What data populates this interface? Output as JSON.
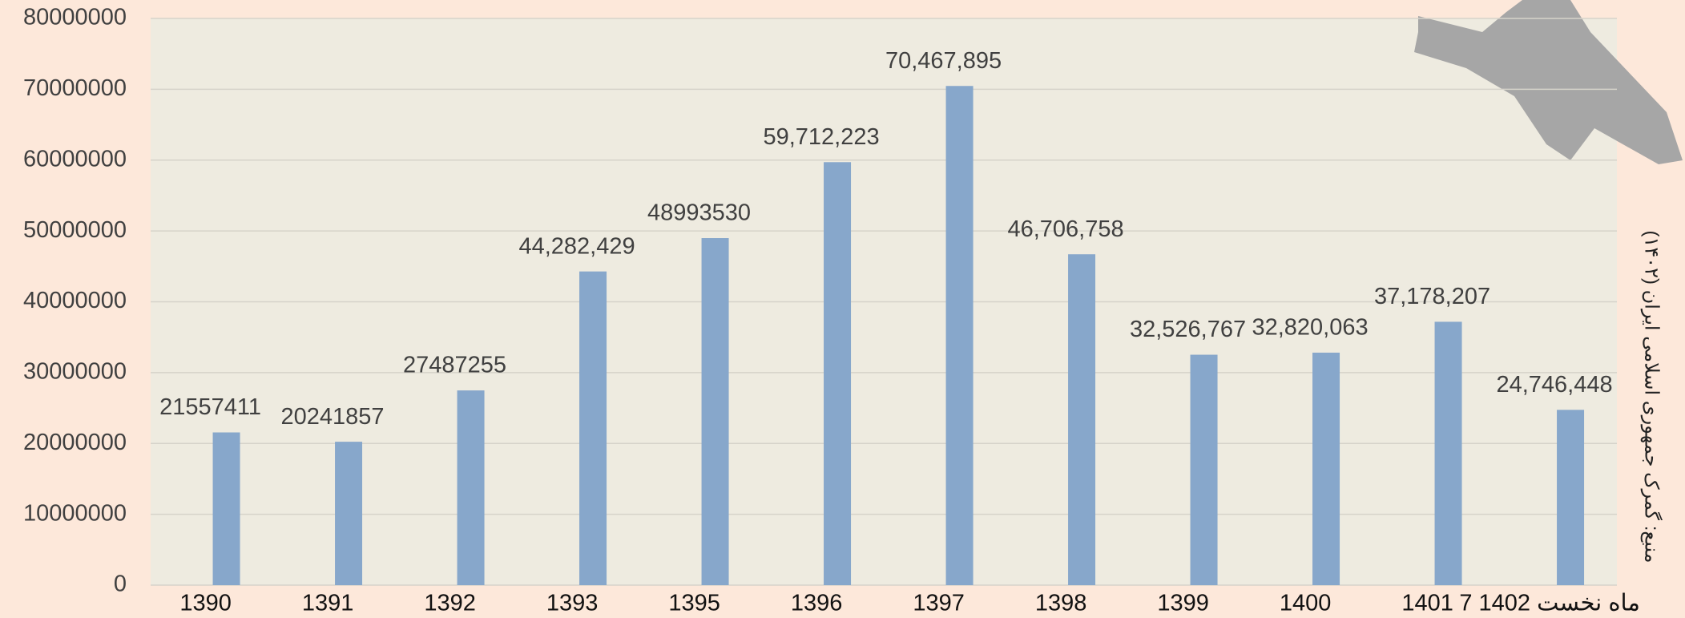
{
  "chart_data": {
    "type": "bar",
    "source": "منبع: گمرک جمهوری اسلامی ایران (۱۴۰۲)",
    "categories": [
      "1390",
      "1391",
      "1392",
      "1393",
      "1395",
      "1396",
      "1397",
      "1398",
      "1399",
      "1400",
      "1401",
      "7 ماه نخست 1402"
    ],
    "values": [
      21557411,
      20241857,
      27487255,
      44282429,
      48993530,
      59712223,
      70467895,
      46706758,
      32526767,
      32820063,
      37178207,
      24746448
    ],
    "value_labels": [
      "21557411",
      "20241857",
      "27487255",
      "44,282,429",
      "48993530",
      "59,712,223",
      "70,467,895",
      "46,706,758",
      "32,526,767",
      "32,820,063",
      "37,178,207",
      "24,746,448"
    ],
    "color": "#87a7cb",
    "ylim": [
      0,
      80000000
    ],
    "yticks": [
      0,
      10000000,
      20000000,
      30000000,
      40000000,
      50000000,
      60000000,
      70000000,
      80000000
    ],
    "grid": true
  }
}
